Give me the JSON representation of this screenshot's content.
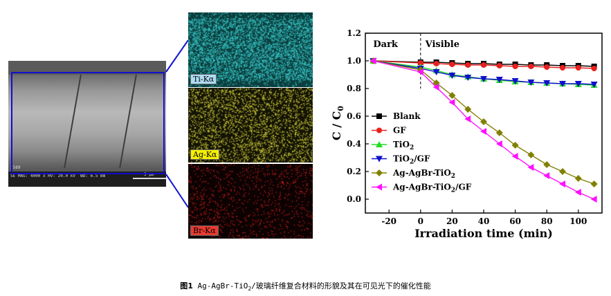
{
  "sem_image": {
    "info_text": "SE MAG: 4000 x HV: 20.0 kV  WD: 6.5 mm",
    "image_id": "3589",
    "scale_label": "5 μm"
  },
  "maps": [
    {
      "label": "Ti-Kα",
      "label_bg": "#aedcf2",
      "dot_color": "#39c8c8"
    },
    {
      "label": "Ag-Kα",
      "label_bg": "#f5f000",
      "dot_color": "#d7d23a"
    },
    {
      "label": "Br-Kα",
      "label_bg": "#e83a30",
      "dot_color": "#cc1f1f"
    }
  ],
  "chart_data": {
    "type": "line",
    "xlabel": "Irradiation time (min)",
    "ylabel": "C / C",
    "ylabel_sub": "0",
    "xlim": [
      -35,
      115
    ],
    "ylim": [
      -0.1,
      1.2
    ],
    "xticks": [
      -20,
      0,
      20,
      40,
      60,
      80,
      100
    ],
    "yticks": [
      0.0,
      0.2,
      0.4,
      0.6,
      0.8,
      1.0,
      1.2
    ],
    "annotations": [
      {
        "text": "Dark",
        "x": -30,
        "y": 1.12
      },
      {
        "text": "Visible",
        "x": 3,
        "y": 1.12
      }
    ],
    "divider_x": 0,
    "legend_position": "bottom-left",
    "series": [
      {
        "name": "Blank",
        "name_sub": "",
        "name_suffix": "",
        "color": "#000000",
        "marker": "square",
        "x": [
          -30,
          0,
          10,
          20,
          30,
          40,
          50,
          60,
          70,
          80,
          90,
          100,
          110
        ],
        "y": [
          1.0,
          0.99,
          0.99,
          0.985,
          0.98,
          0.98,
          0.975,
          0.975,
          0.97,
          0.97,
          0.965,
          0.965,
          0.96
        ]
      },
      {
        "name": "GF",
        "name_sub": "",
        "name_suffix": "",
        "color": "#e8201e",
        "marker": "circle",
        "x": [
          -30,
          0,
          10,
          20,
          30,
          40,
          50,
          60,
          70,
          80,
          90,
          100,
          110
        ],
        "y": [
          1.0,
          0.985,
          0.98,
          0.975,
          0.97,
          0.97,
          0.965,
          0.96,
          0.96,
          0.955,
          0.95,
          0.95,
          0.945
        ]
      },
      {
        "name": "TiO",
        "name_sub": "2",
        "name_suffix": "",
        "color": "#22dd22",
        "marker": "triangle-up",
        "x": [
          -30,
          0,
          10,
          20,
          30,
          40,
          50,
          60,
          70,
          80,
          90,
          100,
          110
        ],
        "y": [
          1.0,
          0.955,
          0.93,
          0.9,
          0.885,
          0.87,
          0.86,
          0.85,
          0.845,
          0.84,
          0.835,
          0.83,
          0.825
        ]
      },
      {
        "name": "TiO",
        "name_sub": "2",
        "name_suffix": "/GF",
        "color": "#1010cc",
        "marker": "triangle-down",
        "x": [
          -30,
          0,
          10,
          20,
          30,
          40,
          50,
          60,
          70,
          80,
          90,
          100,
          110
        ],
        "y": [
          1.0,
          0.945,
          0.92,
          0.895,
          0.88,
          0.87,
          0.865,
          0.855,
          0.845,
          0.84,
          0.835,
          0.835,
          0.83
        ]
      },
      {
        "name": "Ag-AgBr-TiO",
        "name_sub": "2",
        "name_suffix": "",
        "color": "#808000",
        "marker": "diamond",
        "x": [
          -30,
          0,
          10,
          20,
          30,
          40,
          50,
          60,
          70,
          80,
          90,
          100,
          110
        ],
        "y": [
          1.0,
          0.935,
          0.84,
          0.75,
          0.65,
          0.56,
          0.48,
          0.39,
          0.32,
          0.25,
          0.2,
          0.15,
          0.11
        ]
      },
      {
        "name": "Ag-AgBr-TiO",
        "name_sub": "2",
        "name_suffix": "/GF",
        "color": "#ff10ff",
        "marker": "triangle-left",
        "x": [
          -30,
          0,
          10,
          20,
          30,
          40,
          50,
          60,
          70,
          80,
          90,
          100,
          110
        ],
        "y": [
          1.0,
          0.92,
          0.81,
          0.7,
          0.58,
          0.49,
          0.4,
          0.31,
          0.23,
          0.17,
          0.11,
          0.05,
          0.0
        ]
      }
    ]
  },
  "caption": {
    "label": "图1",
    "pre": " Ag-AgBr-TiO",
    "sub": "2",
    "post": "/玻璃纤维复合材料的形貌及其在可见光下的催化性能"
  }
}
